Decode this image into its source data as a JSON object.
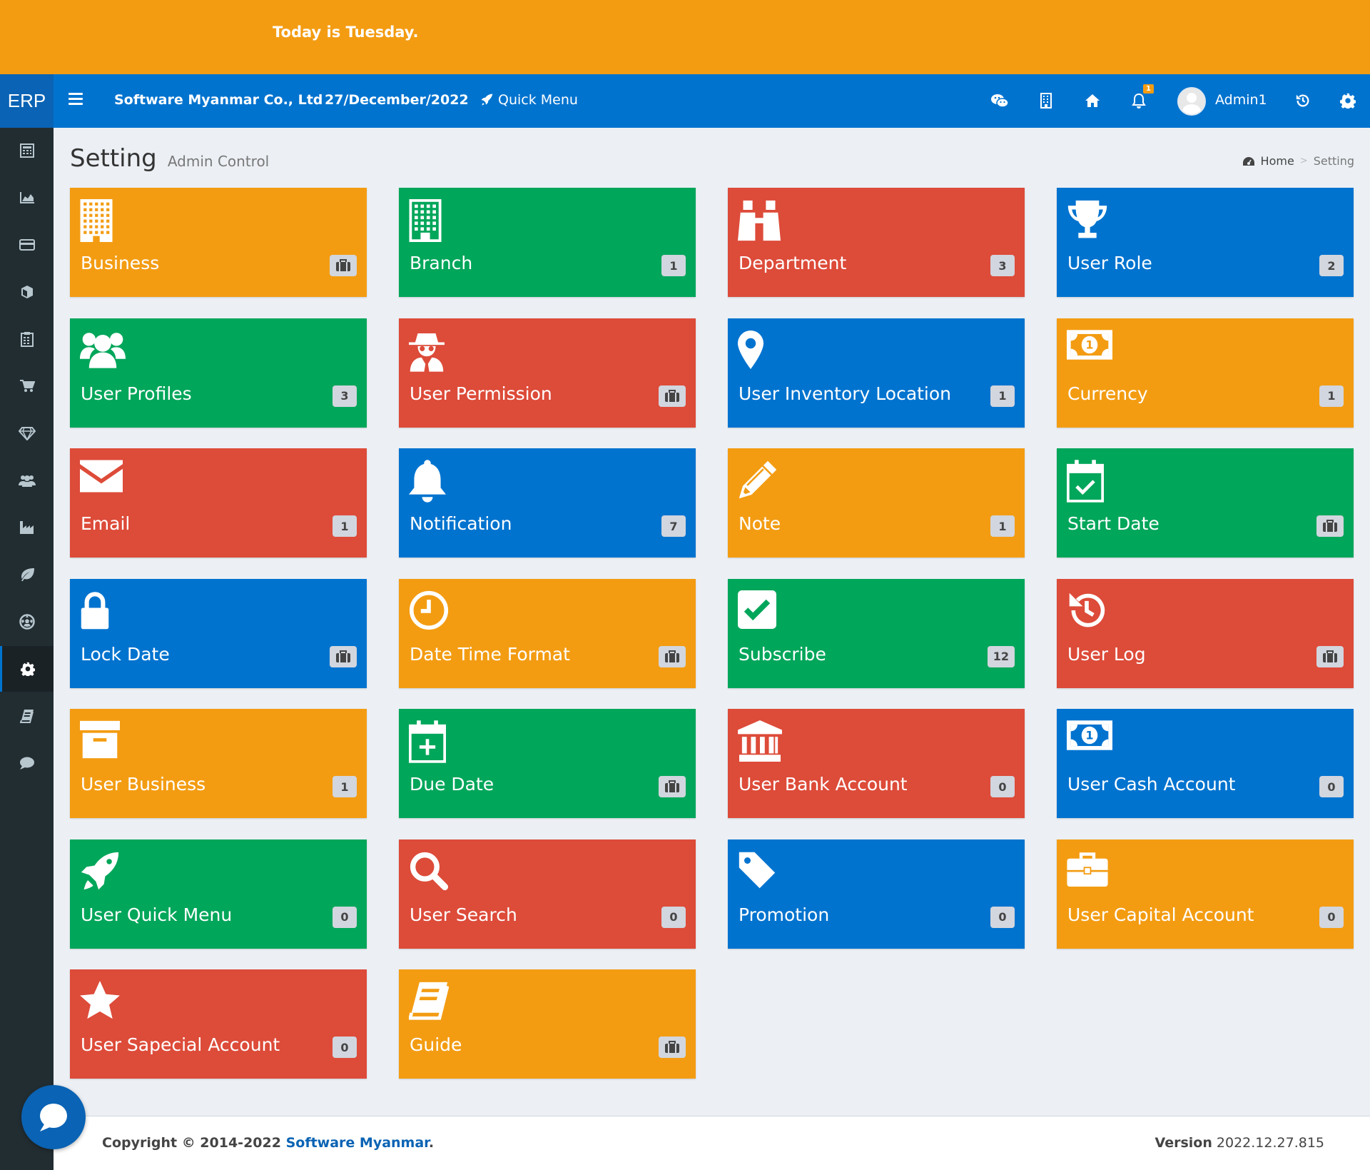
{
  "announcement": "Today is Tuesday.",
  "topbar": {
    "logo": "ERP",
    "company": "Software Myanmar Co., Ltd",
    "date": "27/December/2022",
    "quick_menu": "Quick Menu",
    "notification_count": "1",
    "username": "Admin1",
    "icons": [
      "bars-icon",
      "rocket-icon",
      "wechat-icon",
      "building-icon",
      "home-icon",
      "bell-icon",
      "history-icon",
      "gear-icon"
    ]
  },
  "sidebar": {
    "items": [
      "calculator-icon",
      "area-chart-icon",
      "credit-card-icon",
      "cube-icon",
      "clipboard-icon",
      "cart-icon",
      "diamond-icon",
      "users-icon",
      "industry-icon",
      "leaf-icon",
      "soccer-ball-icon",
      "gear-icon",
      "book-icon",
      "comment-icon"
    ],
    "active_index": 11
  },
  "header": {
    "title": "Setting",
    "subtitle": "Admin Control",
    "breadcrumb_home": "Home",
    "breadcrumb_current": "Setting"
  },
  "tiles": [
    {
      "label": "Business",
      "badge": "",
      "badge_icon": "briefcase-icon",
      "icon": "building-icon",
      "color": "#f39c12"
    },
    {
      "label": "Branch",
      "badge": "1",
      "icon": "building-o-icon",
      "color": "#00a65a"
    },
    {
      "label": "Department",
      "badge": "3",
      "icon": "binoculars-icon",
      "color": "#dd4b39"
    },
    {
      "label": "User Role",
      "badge": "2",
      "icon": "trophy-icon",
      "color": "#0073cf"
    },
    {
      "label": "User Profiles",
      "badge": "3",
      "icon": "users-icon",
      "color": "#00a65a"
    },
    {
      "label": "User Permission",
      "badge": "",
      "badge_icon": "briefcase-icon",
      "icon": "user-secret-icon",
      "color": "#dd4b39"
    },
    {
      "label": "User Inventory Location",
      "badge": "1",
      "icon": "map-marker-icon",
      "color": "#0073cf"
    },
    {
      "label": "Currency",
      "badge": "1",
      "icon": "money-icon",
      "color": "#f39c12"
    },
    {
      "label": "Email",
      "badge": "1",
      "icon": "envelope-icon",
      "color": "#dd4b39"
    },
    {
      "label": "Notification",
      "badge": "7",
      "icon": "bell-icon",
      "color": "#0073cf"
    },
    {
      "label": "Note",
      "badge": "1",
      "icon": "pencil-icon",
      "color": "#f39c12"
    },
    {
      "label": "Start Date",
      "badge": "",
      "badge_icon": "briefcase-icon",
      "icon": "calendar-check-icon",
      "color": "#00a65a"
    },
    {
      "label": "Lock Date",
      "badge": "",
      "badge_icon": "briefcase-icon",
      "icon": "lock-icon",
      "color": "#0073cf"
    },
    {
      "label": "Date Time Format",
      "badge": "",
      "badge_icon": "briefcase-icon",
      "icon": "clock-icon",
      "color": "#f39c12"
    },
    {
      "label": "Subscribe",
      "badge": "12",
      "icon": "check-square-icon",
      "color": "#00a65a"
    },
    {
      "label": "User Log",
      "badge": "",
      "badge_icon": "briefcase-icon",
      "icon": "history-icon",
      "color": "#dd4b39"
    },
    {
      "label": "User Business",
      "badge": "1",
      "icon": "archive-icon",
      "color": "#f39c12"
    },
    {
      "label": "Due Date",
      "badge": "",
      "badge_icon": "briefcase-icon",
      "icon": "calendar-plus-icon",
      "color": "#00a65a"
    },
    {
      "label": "User Bank Account",
      "badge": "0",
      "icon": "bank-icon",
      "color": "#dd4b39"
    },
    {
      "label": "User Cash Account",
      "badge": "0",
      "icon": "money-icon",
      "color": "#0073cf"
    },
    {
      "label": "User Quick Menu",
      "badge": "0",
      "icon": "rocket-icon",
      "color": "#00a65a"
    },
    {
      "label": "User Search",
      "badge": "0",
      "icon": "search-icon",
      "color": "#dd4b39"
    },
    {
      "label": "Promotion",
      "badge": "0",
      "icon": "tag-icon",
      "color": "#0073cf"
    },
    {
      "label": "User Capital Account",
      "badge": "0",
      "icon": "briefcase-icon",
      "color": "#f39c12"
    },
    {
      "label": "User Sapecial Account",
      "badge": "0",
      "icon": "star-icon",
      "color": "#dd4b39"
    },
    {
      "label": "Guide",
      "badge": "",
      "badge_icon": "briefcase-icon",
      "icon": "book-icon",
      "color": "#f39c12"
    }
  ],
  "footer": {
    "copyright_prefix": "Copyright © 2014-2022 ",
    "copyright_link": "Software Myanmar",
    "copyright_suffix": ".",
    "version_label": "Version",
    "version_value": "2022.12.27.815"
  }
}
